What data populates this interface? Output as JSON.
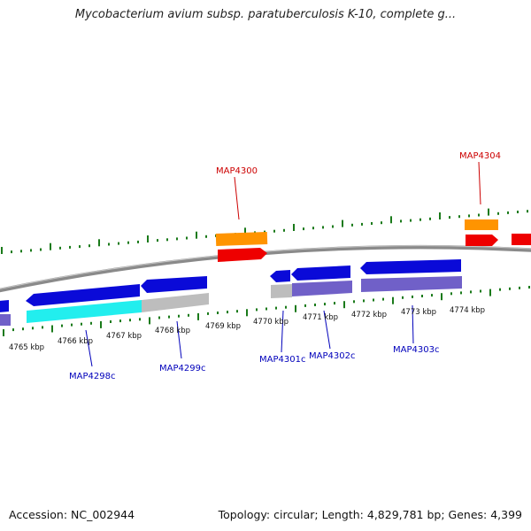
{
  "title": "Mycobacterium avium subsp. paratuberculosis K-10, complete g...",
  "footer": {
    "accession": "Accession: NC_002944",
    "summary": "Topology: circular; Length: 4,829,781 bp; Genes: 4,399"
  },
  "colors": {
    "backbone": "#8a8a8a",
    "ticks": "#1a7a1a",
    "gene_blue": "#0a0ad8",
    "gene_orange": "#ff9400",
    "gene_red": "#ee0000",
    "gene_cyan": "#22eeee",
    "gene_gray": "#bdbdbd",
    "gene_purple": "#7060c8",
    "label_red": "#cc0000",
    "label_blue": "#0000bb"
  },
  "scale": {
    "unit": "kbp",
    "ticks": [
      {
        "label": "4765 kbp"
      },
      {
        "label": "4766 kbp"
      },
      {
        "label": "4767 kbp"
      },
      {
        "label": "4768 kbp"
      },
      {
        "label": "4769 kbp"
      },
      {
        "label": "4770 kbp"
      },
      {
        "label": "4771 kbp"
      },
      {
        "label": "4772 kbp"
      },
      {
        "label": "4773 kbp"
      },
      {
        "label": "4774 kbp"
      }
    ]
  },
  "gene_labels": [
    {
      "name": "MAP4300",
      "strand": "forward"
    },
    {
      "name": "MAP4304",
      "strand": "forward"
    },
    {
      "name": "MAP4298c",
      "strand": "reverse"
    },
    {
      "name": "MAP4299c",
      "strand": "reverse"
    },
    {
      "name": "MAP4301c",
      "strand": "reverse"
    },
    {
      "name": "MAP4302c",
      "strand": "reverse"
    },
    {
      "name": "MAP4303c",
      "strand": "reverse"
    }
  ]
}
